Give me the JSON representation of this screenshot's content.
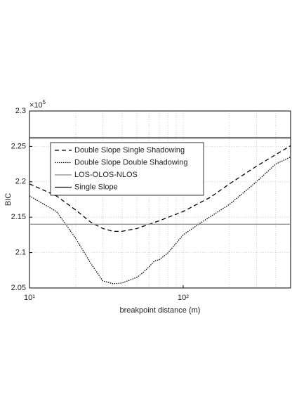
{
  "chart_data": {
    "type": "line",
    "xlabel": "breakpoint distance (m)",
    "ylabel": "BIC",
    "y_multiplier": {
      "base": "×10",
      "exponent": "5"
    },
    "xscale": "log",
    "grid": true,
    "legend": "upper left",
    "xlim": [
      10,
      500
    ],
    "ylim": [
      2.05,
      2.3
    ],
    "xticks": [
      {
        "value": 10,
        "label": "10¹"
      },
      {
        "value": 100,
        "label": "10²"
      }
    ],
    "minor_xticks": [
      20,
      30,
      40,
      50,
      60,
      70,
      80,
      90,
      200,
      300,
      400
    ],
    "yticks": [
      2.05,
      2.1,
      2.15,
      2.2,
      2.25,
      2.3
    ],
    "series": [
      {
        "name": "Double Slope Single Shadowing",
        "color": "#000000",
        "style": "dashed",
        "x": [
          10,
          15,
          20,
          25,
          30,
          35,
          40,
          50,
          70,
          100,
          150,
          200,
          300,
          500
        ],
        "values": [
          2.197,
          2.18,
          2.16,
          2.143,
          2.134,
          2.13,
          2.13,
          2.134,
          2.145,
          2.158,
          2.178,
          2.197,
          2.222,
          2.251
        ]
      },
      {
        "name": "Double Slope Double Shadowing",
        "color": "#000000",
        "style": "dotted",
        "x": [
          10,
          15,
          20,
          25,
          30,
          35,
          40,
          50,
          55,
          60,
          65,
          70,
          80,
          100,
          130,
          200,
          300,
          400,
          500
        ],
        "values": [
          2.18,
          2.158,
          2.12,
          2.085,
          2.06,
          2.056,
          2.057,
          2.065,
          2.072,
          2.08,
          2.088,
          2.09,
          2.1,
          2.125,
          2.142,
          2.168,
          2.2,
          2.225,
          2.235
        ]
      },
      {
        "name": "LOS-OLOS-NLOS",
        "color": "#8c8c8c",
        "style": "solid",
        "x": [
          10,
          500
        ],
        "values": [
          2.14,
          2.14
        ]
      },
      {
        "name": "Single Slope",
        "color": "#000000",
        "style": "solid",
        "x": [
          10,
          500
        ],
        "values": [
          2.262,
          2.262
        ]
      }
    ]
  }
}
